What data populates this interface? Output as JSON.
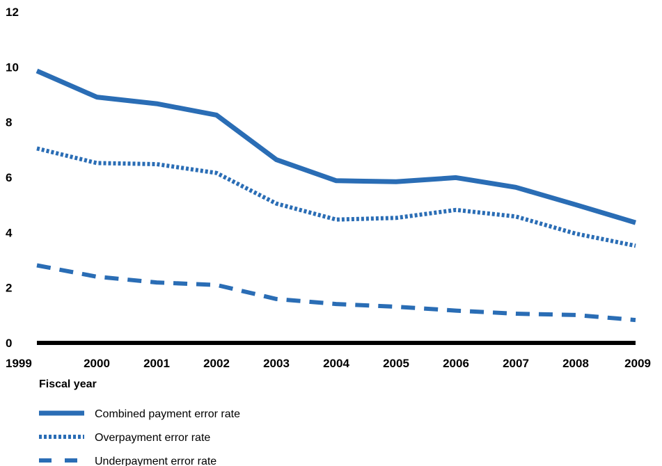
{
  "chart_data": {
    "type": "line",
    "x": [
      "1999",
      "2000",
      "2001",
      "2002",
      "2003",
      "2004",
      "2005",
      "2006",
      "2007",
      "2008",
      "2009"
    ],
    "xlabel": "Fiscal year",
    "ylabel": "",
    "ylim": [
      0,
      12
    ],
    "yticks": [
      0,
      2,
      4,
      6,
      8,
      10,
      12
    ],
    "grid": false,
    "legend_position": "bottom-left",
    "series": [
      {
        "name": "Combined payment error rate",
        "style": "solid",
        "color": "#2a6db5",
        "values": [
          9.86,
          8.91,
          8.67,
          8.26,
          6.64,
          5.88,
          5.84,
          5.99,
          5.64,
          5.01,
          4.36
        ]
      },
      {
        "name": "Overpayment error rate",
        "style": "dotted",
        "color": "#2a6db5",
        "values": [
          7.05,
          6.52,
          6.48,
          6.16,
          5.05,
          4.47,
          4.53,
          4.82,
          4.58,
          3.96,
          3.52
        ]
      },
      {
        "name": "Underpayment error rate",
        "style": "dashed",
        "color": "#2a6db5",
        "values": [
          2.81,
          2.4,
          2.19,
          2.1,
          1.59,
          1.41,
          1.31,
          1.17,
          1.06,
          1.01,
          0.83
        ]
      }
    ]
  }
}
